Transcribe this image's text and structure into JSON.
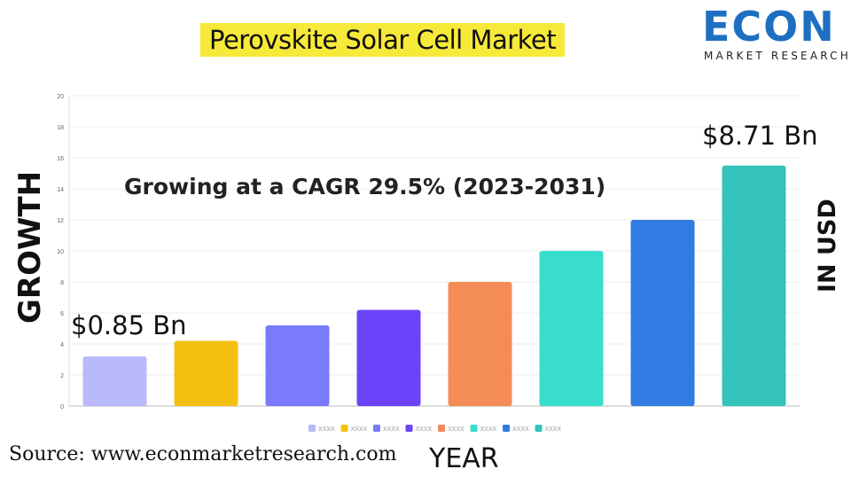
{
  "header": {
    "title": "Perovskite Solar Cell Market"
  },
  "logo": {
    "word": "ECON",
    "sub": "MARKET RESEARCH"
  },
  "footer": {
    "source": "Source: www.econmarketresearch.com"
  },
  "chart_data": {
    "type": "bar",
    "title": "Perovskite Solar Cell Market",
    "xlabel": "YEAR",
    "ylabel": "GROWTH",
    "right_label": "IN USD",
    "annotation_cagr": "Growing at a CAGR 29.5% (2023-2031)",
    "annotation_start": "$0.85 Bn",
    "annotation_end": "$8.71 Bn",
    "ylim": [
      0,
      20
    ],
    "yticks": [
      0,
      2,
      4,
      6,
      8,
      10,
      12,
      14,
      16,
      18,
      20
    ],
    "grid": true,
    "legend_position": "bottom",
    "categories": [
      "XXXX",
      "XXXX",
      "XXXX",
      "XXXX",
      "XXXX",
      "XXXX",
      "XXXX",
      "XXXX"
    ],
    "values": [
      3.2,
      4.2,
      5.2,
      6.2,
      8,
      10,
      12,
      15.5
    ],
    "colors": [
      "#b9b9fb",
      "#f4c010",
      "#7a7afc",
      "#6b44f9",
      "#f48c58",
      "#38ddcb",
      "#327be3",
      "#34c3bb"
    ]
  }
}
